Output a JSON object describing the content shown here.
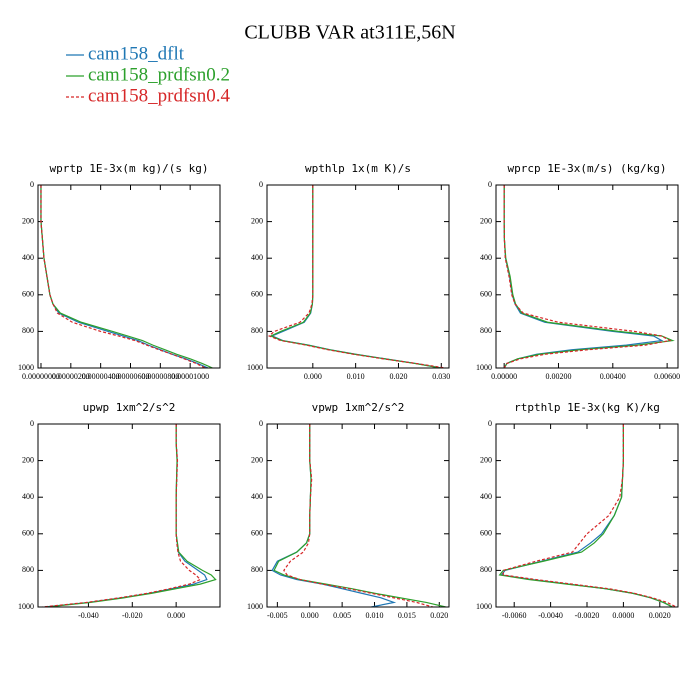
{
  "title": "CLUBB VAR at311E,56N",
  "chart_data": [
    {
      "type": "line",
      "title": "wprtp  1E-3x(m kg)/(s kg)",
      "y": [
        0,
        100,
        200,
        300,
        400,
        500,
        600,
        650,
        700,
        750,
        800,
        825,
        850,
        875,
        900,
        925,
        950,
        975,
        1000
      ],
      "ylim": [
        0,
        1000
      ],
      "y_inverted": true,
      "yticks": [
        0,
        200,
        400,
        600,
        800,
        1000
      ],
      "xlim": [
        -2e-07,
        1.2e-05
      ],
      "xticks": [
        {
          "value": 0,
          "label": "0.00000000"
        },
        {
          "value": 2e-06,
          "label": "0.00000200"
        },
        {
          "value": 4e-06,
          "label": "0.00000400"
        },
        {
          "value": 6e-06,
          "label": "0.00000600"
        },
        {
          "value": 8e-06,
          "label": "0.00000800"
        },
        {
          "value": 1e-05,
          "label": "0.00001000"
        }
      ],
      "series": [
        {
          "name": "cam158_dflt",
          "color": "#1f77b4",
          "dash": false,
          "values": [
            0,
            0,
            0,
            1e-07,
            2e-07,
            4e-07,
            6e-07,
            8e-07,
            1.2e-06,
            2.5e-06,
            4.5e-06,
            5.5e-06,
            6.5e-06,
            7.2e-06,
            8e-06,
            8.8e-06,
            9.7e-06,
            1.05e-05,
            1.12e-05
          ]
        },
        {
          "name": "cam158_prdfsn0.2",
          "color": "#2ca02c",
          "dash": false,
          "values": [
            0,
            0,
            0,
            1e-07,
            2e-07,
            4e-07,
            6e-07,
            8e-07,
            1.3e-06,
            2.7e-06,
            4.8e-06,
            5.8e-06,
            6.8e-06,
            7.5e-06,
            8.3e-06,
            9.1e-06,
            1e-05,
            1.08e-05,
            1.15e-05
          ]
        },
        {
          "name": "cam158_prdfsn0.4",
          "color": "#d62728",
          "dash": true,
          "values": [
            0,
            0,
            0,
            1e-07,
            2e-07,
            4e-07,
            6e-07,
            8e-07,
            1.1e-06,
            2.1e-06,
            4e-06,
            5.2e-06,
            6.3e-06,
            7.1e-06,
            7.9e-06,
            8.8e-06,
            9.6e-06,
            1.04e-05,
            1.1e-05
          ]
        }
      ]
    },
    {
      "type": "line",
      "title": "wpthlp  1x(m K)/s",
      "y": [
        0,
        100,
        200,
        300,
        400,
        500,
        600,
        650,
        700,
        750,
        800,
        825,
        850,
        875,
        900,
        925,
        950,
        975,
        1000
      ],
      "ylim": [
        0,
        1000
      ],
      "y_inverted": true,
      "yticks": [
        0,
        200,
        400,
        600,
        800,
        1000
      ],
      "xlim": [
        -0.0107,
        0.0318
      ],
      "xticks": [
        {
          "value": 0,
          "label": "0.000"
        },
        {
          "value": 0.01,
          "label": "0.010"
        },
        {
          "value": 0.02,
          "label": "0.020"
        },
        {
          "value": 0.03,
          "label": "0.030"
        }
      ],
      "series": [
        {
          "name": "cam158_dflt",
          "color": "#1f77b4",
          "dash": false,
          "values": [
            0,
            0,
            0,
            0,
            0,
            0,
            0,
            -0.0001,
            -0.0005,
            -0.002,
            -0.007,
            -0.0095,
            -0.007,
            -0.001,
            0.004,
            0.01,
            0.017,
            0.024,
            0.03
          ]
        },
        {
          "name": "cam158_prdfsn0.2",
          "color": "#2ca02c",
          "dash": false,
          "values": [
            0,
            0,
            0,
            0,
            0,
            0,
            0,
            -0.0001,
            -0.0006,
            -0.0022,
            -0.0075,
            -0.0098,
            -0.0072,
            -0.0012,
            0.0038,
            0.0098,
            0.0168,
            0.0238,
            0.0298
          ]
        },
        {
          "name": "cam158_prdfsn0.4",
          "color": "#d62728",
          "dash": true,
          "values": [
            0,
            0,
            0,
            0,
            0,
            0,
            0,
            -0.0002,
            -0.0009,
            -0.003,
            -0.009,
            -0.0102,
            -0.0075,
            -0.0015,
            0.0035,
            0.0095,
            0.0165,
            0.024,
            0.031
          ]
        }
      ]
    },
    {
      "type": "line",
      "title": "wprcp  1E-3x(m/s) (kg/kg)",
      "y": [
        0,
        100,
        200,
        300,
        400,
        500,
        600,
        650,
        700,
        750,
        800,
        825,
        850,
        875,
        900,
        925,
        950,
        975,
        1000
      ],
      "ylim": [
        0,
        1000
      ],
      "y_inverted": true,
      "yticks": [
        0,
        200,
        400,
        600,
        800,
        1000
      ],
      "xlim": [
        -0.0003,
        0.0064
      ],
      "xticks": [
        {
          "value": 0,
          "label": "0.00000"
        },
        {
          "value": 0.002,
          "label": "0.00200"
        },
        {
          "value": 0.004,
          "label": "0.00400"
        },
        {
          "value": 0.006,
          "label": "0.00600"
        }
      ],
      "series": [
        {
          "name": "cam158_dflt",
          "color": "#1f77b4",
          "dash": false,
          "values": [
            0,
            0,
            0,
            1e-05,
            5e-05,
            0.0002,
            0.0003,
            0.0004,
            0.0006,
            0.0015,
            0.004,
            0.0055,
            0.0058,
            0.0045,
            0.0025,
            0.0012,
            0.0005,
            0.0001,
            0
          ]
        },
        {
          "name": "cam158_prdfsn0.2",
          "color": "#2ca02c",
          "dash": false,
          "values": [
            0,
            0,
            0,
            1e-05,
            6e-05,
            0.00022,
            0.00032,
            0.00042,
            0.00065,
            0.0016,
            0.0042,
            0.0058,
            0.0062,
            0.0049,
            0.0028,
            0.0013,
            0.0005,
            0.0001,
            0
          ]
        },
        {
          "name": "cam158_prdfsn0.4",
          "color": "#d62728",
          "dash": true,
          "values": [
            0,
            0,
            0,
            1e-05,
            4e-05,
            0.00018,
            0.00028,
            0.0004,
            0.0007,
            0.002,
            0.0048,
            0.0058,
            0.0061,
            0.0052,
            0.0031,
            0.0015,
            0.0006,
            0.0001,
            0
          ]
        }
      ]
    },
    {
      "type": "line",
      "title": "upwp  1xm^2/s^2",
      "y": [
        0,
        100,
        200,
        300,
        400,
        500,
        600,
        650,
        700,
        750,
        800,
        825,
        850,
        875,
        900,
        925,
        950,
        975,
        1000
      ],
      "ylim": [
        0,
        1000
      ],
      "y_inverted": true,
      "yticks": [
        0,
        200,
        400,
        600,
        800,
        1000
      ],
      "xlim": [
        -0.063,
        0.02
      ],
      "xticks": [
        {
          "value": -0.04,
          "label": "-0.040"
        },
        {
          "value": -0.02,
          "label": "-0.020"
        },
        {
          "value": 0,
          "label": "0.000"
        }
      ],
      "series": [
        {
          "name": "cam158_dflt",
          "color": "#1f77b4",
          "dash": false,
          "values": [
            0,
            0,
            0.0005,
            0.0002,
            0,
            0,
            0,
            0.0005,
            0.001,
            0.004,
            0.01,
            0.013,
            0.014,
            0.008,
            -0.002,
            -0.012,
            -0.025,
            -0.04,
            -0.06
          ]
        },
        {
          "name": "cam158_prdfsn0.2",
          "color": "#2ca02c",
          "dash": false,
          "values": [
            0,
            0,
            0.0004,
            0.0002,
            0,
            0,
            0,
            0.0006,
            0.0012,
            0.005,
            0.012,
            0.016,
            0.018,
            0.011,
            0,
            -0.011,
            -0.024,
            -0.039,
            -0.059
          ]
        },
        {
          "name": "cam158_prdfsn0.4",
          "color": "#d62728",
          "dash": true,
          "values": [
            0,
            0,
            0.0006,
            0.0003,
            0,
            0,
            0,
            0.0003,
            0.0008,
            0.002,
            0.006,
            0.009,
            0.011,
            0.006,
            -0.003,
            -0.013,
            -0.026,
            -0.041,
            -0.061
          ]
        }
      ]
    },
    {
      "type": "line",
      "title": "vpwp  1xm^2/s^2",
      "y": [
        0,
        100,
        200,
        300,
        400,
        500,
        600,
        650,
        700,
        750,
        800,
        825,
        850,
        875,
        900,
        925,
        950,
        975,
        1000
      ],
      "ylim": [
        0,
        1000
      ],
      "y_inverted": true,
      "yticks": [
        0,
        200,
        400,
        600,
        800,
        1000
      ],
      "xlim": [
        -0.0066,
        0.0215
      ],
      "xticks": [
        {
          "value": -0.005,
          "label": "-0.005"
        },
        {
          "value": 0,
          "label": "0.000"
        },
        {
          "value": 0.005,
          "label": "0.005"
        },
        {
          "value": 0.01,
          "label": "0.010"
        },
        {
          "value": 0.015,
          "label": "0.015"
        },
        {
          "value": 0.02,
          "label": "0.020"
        }
      ],
      "series": [
        {
          "name": "cam158_dflt",
          "color": "#1f77b4",
          "dash": false,
          "values": [
            0,
            0,
            0,
            0.0002,
            0.0001,
            0,
            0,
            -0.0005,
            -0.002,
            -0.005,
            -0.0058,
            -0.0045,
            -0.002,
            0.002,
            0.005,
            0.008,
            0.011,
            0.013,
            0.0095
          ]
        },
        {
          "name": "cam158_prdfsn0.2",
          "color": "#2ca02c",
          "dash": false,
          "values": [
            0,
            0,
            0,
            0.0002,
            0.0001,
            0,
            0,
            -0.0005,
            -0.002,
            -0.0048,
            -0.0055,
            -0.004,
            -0.0015,
            0.0025,
            0.0065,
            0.01,
            0.014,
            0.018,
            0.021
          ]
        },
        {
          "name": "cam158_prdfsn0.4",
          "color": "#d62728",
          "dash": true,
          "values": [
            0,
            0,
            0,
            0.0003,
            0.0001,
            0,
            0,
            -0.0002,
            -0.001,
            -0.003,
            -0.004,
            -0.0035,
            -0.0015,
            0.002,
            0.006,
            0.0095,
            0.013,
            0.0165,
            0.019
          ]
        }
      ]
    },
    {
      "type": "line",
      "title": "rtpthlp  1E-3x(kg K)/kg",
      "y": [
        0,
        100,
        200,
        300,
        400,
        500,
        600,
        650,
        700,
        750,
        800,
        825,
        850,
        875,
        900,
        925,
        950,
        975,
        1000
      ],
      "ylim": [
        0,
        1000
      ],
      "y_inverted": true,
      "yticks": [
        0,
        200,
        400,
        600,
        800,
        1000
      ],
      "xlim": [
        -0.007,
        0.003
      ],
      "xticks": [
        {
          "value": -0.006,
          "label": "-0.0060"
        },
        {
          "value": -0.004,
          "label": "-0.0040"
        },
        {
          "value": -0.002,
          "label": "-0.0020"
        },
        {
          "value": 0,
          "label": "0.0000"
        },
        {
          "value": 0.002,
          "label": "0.0020"
        }
      ],
      "series": [
        {
          "name": "cam158_dflt",
          "color": "#1f77b4",
          "dash": false,
          "values": [
            0,
            0,
            0,
            -5e-05,
            -0.0001,
            -0.0005,
            -0.0012,
            -0.0018,
            -0.0025,
            -0.0045,
            -0.0065,
            -0.0067,
            -0.005,
            -0.003,
            -0.001,
            0.0005,
            0.0015,
            0.0022,
            0.0027
          ]
        },
        {
          "name": "cam158_prdfsn0.2",
          "color": "#2ca02c",
          "dash": false,
          "values": [
            0,
            0,
            0,
            -5e-05,
            -0.0001,
            -0.0005,
            -0.0011,
            -0.0016,
            -0.0023,
            -0.0044,
            -0.0066,
            -0.0068,
            -0.0052,
            -0.0031,
            -0.001,
            0.0005,
            0.0015,
            0.0022,
            0.0027
          ]
        },
        {
          "name": "cam158_prdfsn0.4",
          "color": "#d62728",
          "dash": true,
          "values": [
            0,
            0,
            0,
            -5e-05,
            -0.0002,
            -0.0008,
            -0.002,
            -0.0024,
            -0.0028,
            -0.0048,
            -0.0066,
            -0.0066,
            -0.0048,
            -0.0028,
            -0.0008,
            0.0006,
            0.0016,
            0.0024,
            0.0029
          ]
        }
      ]
    }
  ]
}
